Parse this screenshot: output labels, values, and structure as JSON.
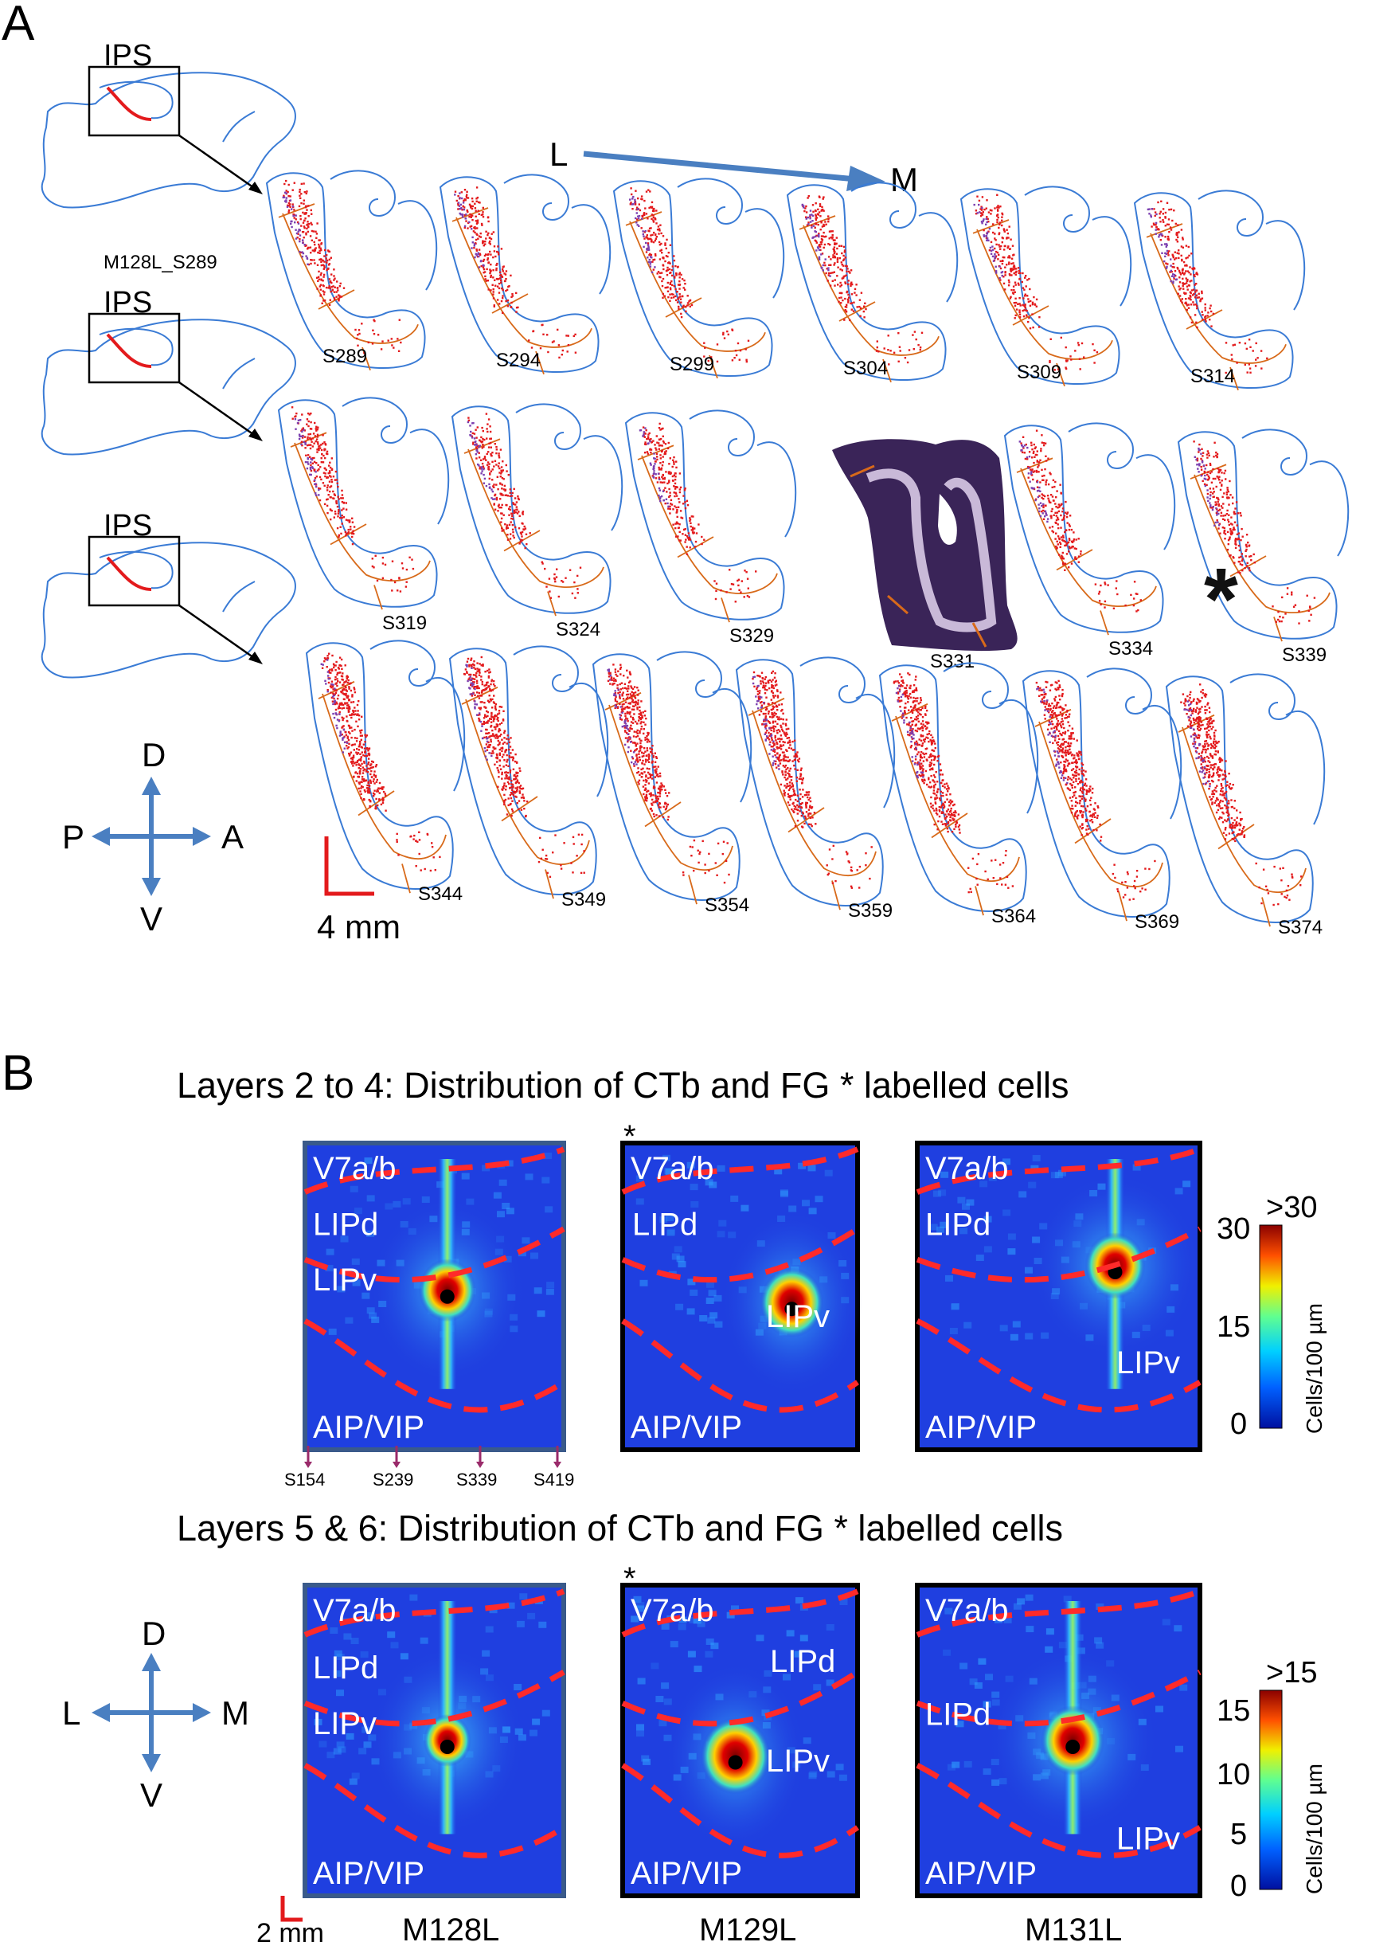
{
  "panelA": {
    "letter": "A",
    "overview_labels": [
      "IPS",
      "IPS",
      "IPS"
    ],
    "overview_caption": "M128L_S289",
    "lm_arrow": {
      "from": "L",
      "to": "M"
    },
    "rows": [
      [
        "S289",
        "S294",
        "S299",
        "S304",
        "S309",
        "S314"
      ],
      [
        "S319",
        "S324",
        "S329",
        "S331",
        "S334",
        "S339"
      ],
      [
        "S344",
        "S349",
        "S354",
        "S359",
        "S364",
        "S369",
        "S374"
      ]
    ],
    "compass": {
      "up": "D",
      "down": "V",
      "left": "P",
      "right": "A"
    },
    "scale_bar": "4 mm",
    "injection_marker": "*"
  },
  "panelB": {
    "letter": "B",
    "titles": [
      "Layers 2 to 4: Distribution of CTb and FG * labelled cells",
      "Layers 5 & 6: Distribution of CTb and FG * labelled cells"
    ],
    "fg_marker": "*",
    "maps_top": [
      {
        "labels": [
          "V7a/b",
          "LIPd",
          "LIPv",
          "AIP/VIP"
        ]
      },
      {
        "labels": [
          "V7a/b",
          "LIPd",
          "LIPv",
          "AIP/VIP"
        ]
      },
      {
        "labels": [
          "V7a/b",
          "LIPd",
          "AIP/VIP",
          "LIPv"
        ]
      }
    ],
    "maps_bottom": [
      {
        "labels": [
          "V7a/b",
          "LIPd",
          "LIPv",
          "AIP/VIP"
        ]
      },
      {
        "labels": [
          "V7a/b",
          "LIPd",
          "LIPv",
          "AIP/VIP"
        ]
      },
      {
        "labels": [
          "V7a/b",
          "LIPd",
          "LIPv",
          "AIP/VIP"
        ]
      }
    ],
    "slice_ticks": [
      "S154",
      "S239",
      "S339",
      "S419"
    ],
    "colorbar_top": {
      "ticks": [
        "30",
        "15",
        "0"
      ],
      "max_label": ">30",
      "unit": "Cells/100 µm"
    },
    "colorbar_bottom": {
      "ticks": [
        "15",
        "10",
        "5",
        "0"
      ],
      "max_label": ">15",
      "unit": "Cells/100 µm"
    },
    "compass": {
      "up": "D",
      "down": "V",
      "left": "L",
      "right": "M"
    },
    "scale_bar": "2 mm",
    "monkeys": [
      "M128L",
      "M129L",
      "M131L"
    ]
  },
  "colors": {
    "outline": "#3a7bd5",
    "boundary": "#d86a1a",
    "ctb": "#e31a1c",
    "fg": "#7b3fb0",
    "map_bg": "#1f3fe0",
    "dash": "#ff2a2a",
    "arrow": "#4a7fc1",
    "scalebar": "#e31a1c"
  }
}
